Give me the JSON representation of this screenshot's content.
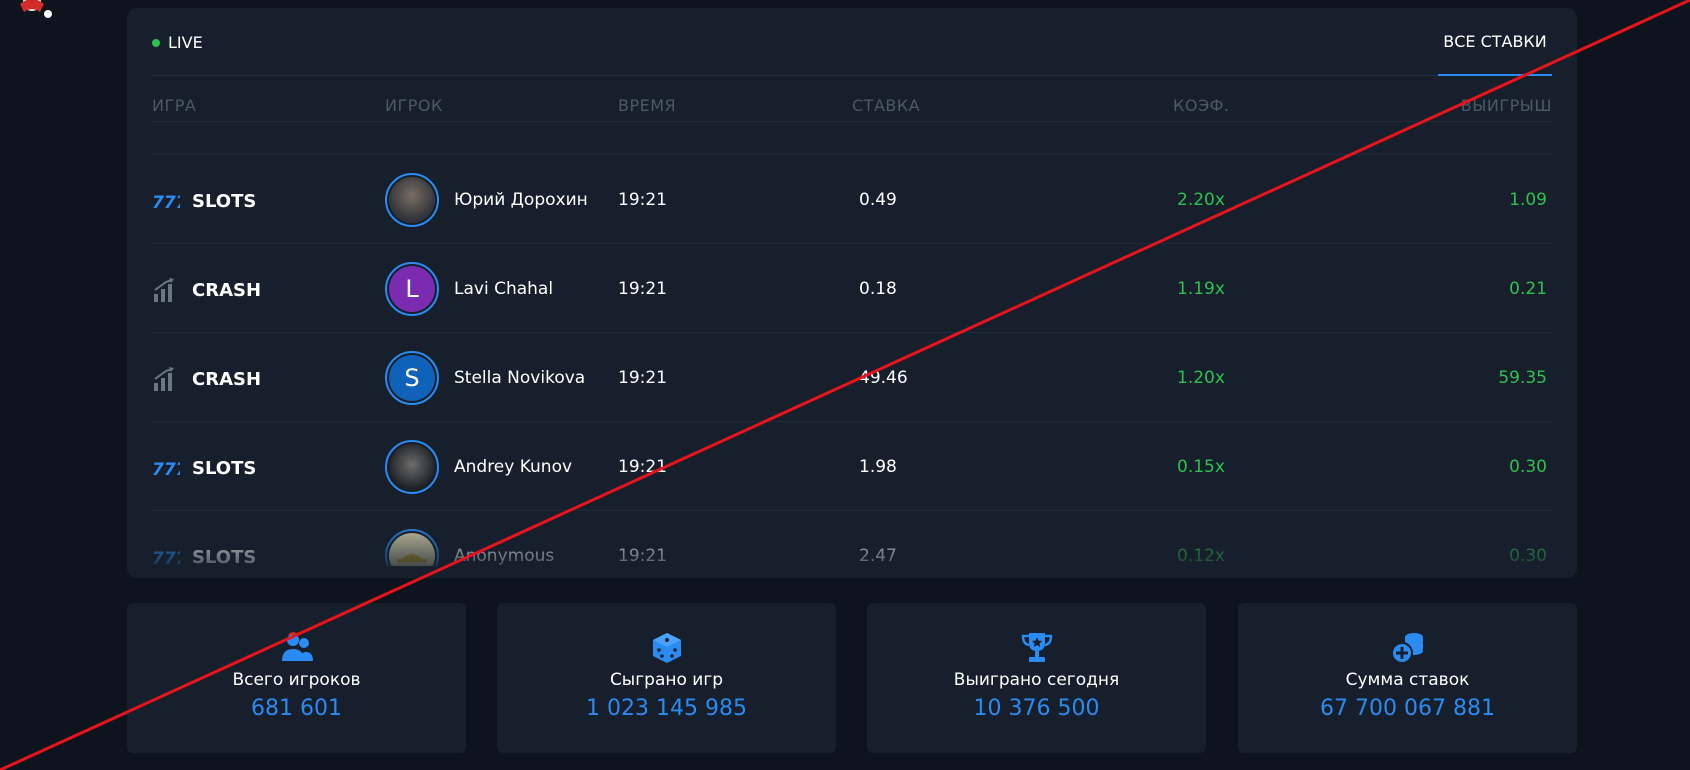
{
  "panel": {
    "live_label": "LIVE",
    "tab_all_bets": "ВСЕ СТАВКИ"
  },
  "columns": {
    "game": "ИГРА",
    "player": "ИГРОК",
    "time": "ВРЕМЯ",
    "bet": "СТАВКА",
    "coef": "КОЭФ.",
    "win": "ВЫИГРЫШ"
  },
  "rows": [
    {
      "game": "SLOTS",
      "game_icon": "slots-777-icon",
      "avatar_letter": "",
      "avatar_color": "#3a3f47",
      "player": "Юрий Дорохин",
      "time": "19:21",
      "bet": "0.49",
      "coef": "2.20x",
      "win": "1.09"
    },
    {
      "game": "CRASH",
      "game_icon": "crash-chart-icon",
      "avatar_letter": "L",
      "avatar_color": "#7b2bb0",
      "player": "Lavi Chahal",
      "time": "19:21",
      "bet": "0.18",
      "coef": "1.19x",
      "win": "0.21"
    },
    {
      "game": "CRASH",
      "game_icon": "crash-chart-icon",
      "avatar_letter": "S",
      "avatar_color": "#0f62b7",
      "player": "Stella Novikova",
      "time": "19:21",
      "bet": "49.46",
      "coef": "1.20x",
      "win": "59.35"
    },
    {
      "game": "SLOTS",
      "game_icon": "slots-777-icon",
      "avatar_letter": "",
      "avatar_color": "#2c2f33",
      "player": "Andrey Kunov",
      "time": "19:21",
      "bet": "1.98",
      "coef": "0.15x",
      "win": "0.30"
    },
    {
      "game": "SLOTS",
      "game_icon": "slots-777-icon",
      "avatar_letter": "",
      "avatar_color": "#d9d4b0",
      "player": "Anonymous",
      "time": "19:21",
      "bet": "2.47",
      "coef": "0.12x",
      "win": "0.30"
    }
  ],
  "stats": [
    {
      "icon": "users-icon",
      "label": "Всего игроков",
      "value": "681 601"
    },
    {
      "icon": "dice-icon",
      "label": "Сыграно игр",
      "value": "1 023 145 985"
    },
    {
      "icon": "trophy-icon",
      "label": "Выиграно сегодня",
      "value": "10 376 500"
    },
    {
      "icon": "coins-icon",
      "label": "Сумма ставок",
      "value": "67 700 067 881"
    }
  ],
  "colors": {
    "accent": "#2a8bf2",
    "positive": "#2fc14e",
    "panel": "#161f2b",
    "background": "#0e141d"
  }
}
